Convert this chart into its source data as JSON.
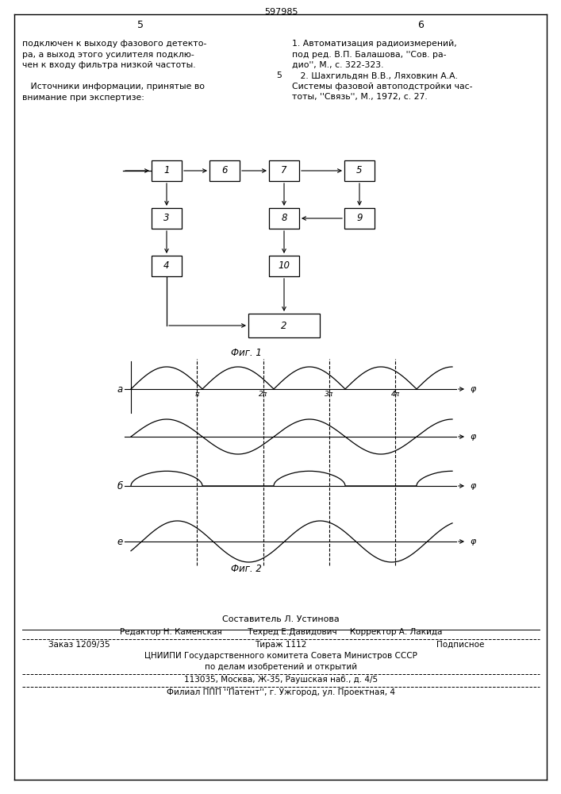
{
  "title_number": "597985",
  "page_left": "5",
  "page_right": "6",
  "text_left_lines": [
    "подключен к выходу фазового детекто-",
    "ра, а выход этого усилителя подклю-",
    "чен к входу фильтра низкой частоты.",
    "",
    "   Источники информации, принятые во",
    "внимание при экспертизе:"
  ],
  "text_right_lines": [
    "1. Автоматизация радиоизмерений,",
    "под ред. В.П. Балашова, ''Сов. ра-",
    "дио'', М., с. 322-323.",
    "   2. Шахгильдян В.В., Ляховкин А.А.",
    "Системы фазовой автоподстройки час-",
    "тоты, ''Связь'', М., 1972, с. 27."
  ],
  "ref_num_5_line": 3,
  "fig1_caption": "Фиг. 1",
  "fig2_caption": "Фиг. 2",
  "footer": {
    "line1": "Составитель Л. Устинова",
    "line2_left": "Редактор Н. Каменская",
    "line2_mid": "Техред Е.Давидович",
    "line2_right": "Корректор А. Лакида",
    "line3_left": "Заказ 1209/35",
    "line3_mid": "Тираж 1112",
    "line3_right": "Подписное",
    "line4": "ЦНИИПИ Государственного комитета Совета Министров СССР",
    "line5": "по делам изобретений и открытий",
    "line6": "113035, Москва, Ж-35, Раушская наб., д. 4/5",
    "line7": "Филиал ППП ''Патент'', г. Ужгород, ул. Проектная, 4"
  },
  "bg_color": "#ffffff",
  "text_color": "#000000"
}
